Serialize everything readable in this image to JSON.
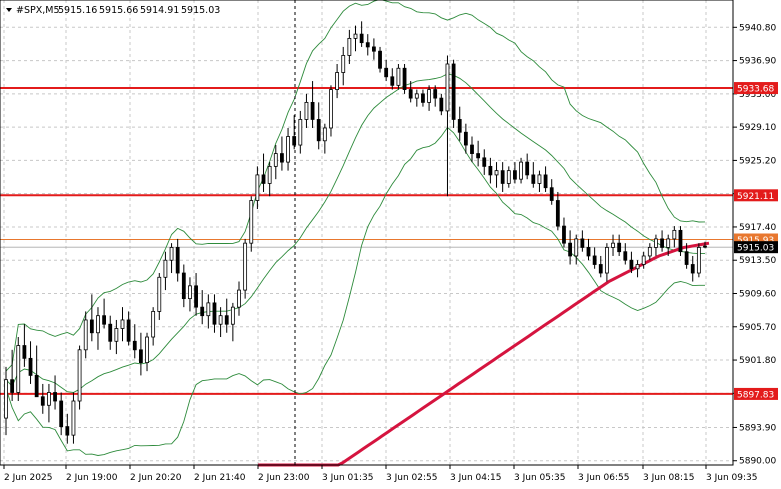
{
  "chart_data": {
    "type": "candlestick",
    "title": "#SPX,M5",
    "header": {
      "symbol": "#SPX,M5",
      "open": "5915.16",
      "high": "5915.66",
      "low": "5914.91",
      "close": "5915.03"
    },
    "ylim": [
      5889.5,
      5944.0
    ],
    "y_ticks": [
      "5940.80",
      "5936.90",
      "5933.00",
      "5929.10",
      "5925.20",
      "5921.30",
      "5917.40",
      "5913.50",
      "5909.60",
      "5905.70",
      "5901.80",
      "5897.90",
      "5893.90",
      "5890.00"
    ],
    "x_ticks": [
      "2 Jun 2025",
      "2 Jun 19:00",
      "2 Jun 20:20",
      "2 Jun 21:40",
      "2 Jun 23:00",
      "3 Jun 01:35",
      "3 Jun 02:55",
      "3 Jun 04:15",
      "3 Jun 05:35",
      "3 Jun 06:55",
      "3 Jun 08:15",
      "3 Jun 09:35"
    ],
    "horizontal_levels": [
      {
        "value": 5933.68,
        "label": "5933.68",
        "color": "#e31b1b"
      },
      {
        "value": 5921.11,
        "label": "5921.11",
        "color": "#e31b1b"
      },
      {
        "value": 5897.83,
        "label": "5897.83",
        "color": "#e31b1b"
      },
      {
        "value": 5915.93,
        "label": "5915.93",
        "color": "#e8772e"
      }
    ],
    "current_price": {
      "value": 5915.03,
      "label": "5915.03"
    },
    "candles": [
      [
        5895.0,
        5901.0,
        5893.0,
        5899.5
      ],
      [
        5899.5,
        5903.0,
        5897.0,
        5898.0
      ],
      [
        5898.0,
        5904.5,
        5897.0,
        5903.5
      ],
      [
        5903.5,
        5906.0,
        5901.0,
        5902.0
      ],
      [
        5902.0,
        5904.0,
        5899.0,
        5900.0
      ],
      [
        5900.0,
        5903.5,
        5898.0,
        5897.5
      ],
      [
        5897.5,
        5899.0,
        5895.5,
        5896.5
      ],
      [
        5896.5,
        5899.0,
        5894.5,
        5898.0
      ],
      [
        5898.0,
        5900.0,
        5896.0,
        5897.0
      ],
      [
        5897.0,
        5898.0,
        5893.0,
        5894.0
      ],
      [
        5894.0,
        5895.5,
        5892.0,
        5893.0
      ],
      [
        5893.0,
        5898.0,
        5892.0,
        5897.0
      ],
      [
        5897.0,
        5903.5,
        5896.0,
        5903.0
      ],
      [
        5903.0,
        5907.5,
        5902.0,
        5906.5
      ],
      [
        5906.5,
        5909.5,
        5904.0,
        5905.0
      ],
      [
        5905.0,
        5908.0,
        5903.0,
        5907.0
      ],
      [
        5907.0,
        5909.0,
        5905.5,
        5906.0
      ],
      [
        5906.0,
        5907.0,
        5903.0,
        5904.0
      ],
      [
        5904.0,
        5906.5,
        5902.5,
        5905.5
      ],
      [
        5905.5,
        5908.0,
        5904.0,
        5906.5
      ],
      [
        5906.5,
        5907.5,
        5903.5,
        5904.0
      ],
      [
        5904.0,
        5906.0,
        5902.0,
        5903.0
      ],
      [
        5903.0,
        5905.0,
        5900.0,
        5901.5
      ],
      [
        5901.5,
        5905.0,
        5900.5,
        5904.5
      ],
      [
        5904.5,
        5908.0,
        5903.5,
        5907.5
      ],
      [
        5907.5,
        5912.0,
        5906.5,
        5911.5
      ],
      [
        5911.5,
        5914.5,
        5910.0,
        5913.5
      ],
      [
        5913.5,
        5915.5,
        5912.0,
        5915.0
      ],
      [
        5915.0,
        5916.0,
        5911.0,
        5912.0
      ],
      [
        5912.0,
        5913.0,
        5908.0,
        5909.0
      ],
      [
        5909.0,
        5911.5,
        5907.5,
        5910.5
      ],
      [
        5910.5,
        5912.0,
        5907.0,
        5908.0
      ],
      [
        5908.0,
        5910.0,
        5906.0,
        5907.0
      ],
      [
        5907.0,
        5909.5,
        5905.5,
        5908.5
      ],
      [
        5908.5,
        5909.5,
        5905.0,
        5906.0
      ],
      [
        5906.0,
        5908.0,
        5904.5,
        5907.0
      ],
      [
        5907.0,
        5909.0,
        5905.0,
        5906.0
      ],
      [
        5906.0,
        5908.5,
        5904.0,
        5908.0
      ],
      [
        5908.0,
        5911.0,
        5907.0,
        5910.0
      ],
      [
        5910.0,
        5916.0,
        5909.0,
        5915.5
      ],
      [
        5915.5,
        5921.0,
        5914.5,
        5920.5
      ],
      [
        5920.5,
        5924.5,
        5919.5,
        5923.5
      ],
      [
        5923.5,
        5926.0,
        5921.5,
        5922.5
      ],
      [
        5922.5,
        5925.0,
        5921.0,
        5924.5
      ],
      [
        5924.5,
        5927.0,
        5923.0,
        5926.0
      ],
      [
        5926.0,
        5928.0,
        5924.0,
        5925.0
      ],
      [
        5925.0,
        5929.0,
        5924.0,
        5928.0
      ],
      [
        5928.0,
        5930.5,
        5926.5,
        5927.0
      ],
      [
        5927.0,
        5931.0,
        5926.0,
        5930.0
      ],
      [
        5930.0,
        5933.0,
        5929.0,
        5932.0
      ],
      [
        5932.0,
        5934.5,
        5929.0,
        5930.0
      ],
      [
        5930.0,
        5932.0,
        5926.5,
        5927.5
      ],
      [
        5927.5,
        5929.5,
        5926.0,
        5929.0
      ],
      [
        5929.0,
        5934.0,
        5928.0,
        5933.5
      ],
      [
        5933.5,
        5936.5,
        5932.5,
        5935.5
      ],
      [
        5935.5,
        5938.5,
        5934.0,
        5937.5
      ],
      [
        5937.5,
        5940.5,
        5936.5,
        5939.5
      ],
      [
        5939.5,
        5941.0,
        5938.0,
        5940.0
      ],
      [
        5940.0,
        5941.5,
        5938.5,
        5939.0
      ],
      [
        5939.0,
        5940.0,
        5937.5,
        5938.5
      ],
      [
        5938.5,
        5939.5,
        5937.0,
        5938.0
      ],
      [
        5938.0,
        5938.5,
        5935.5,
        5936.0
      ],
      [
        5936.0,
        5937.0,
        5934.5,
        5935.0
      ],
      [
        5935.0,
        5936.0,
        5933.5,
        5934.0
      ],
      [
        5934.0,
        5936.5,
        5933.5,
        5936.0
      ],
      [
        5936.0,
        5936.5,
        5933.0,
        5933.5
      ],
      [
        5933.5,
        5934.5,
        5932.0,
        5932.5
      ],
      [
        5932.5,
        5933.5,
        5931.5,
        5933.0
      ],
      [
        5933.0,
        5933.5,
        5931.5,
        5932.0
      ],
      [
        5932.0,
        5934.0,
        5931.0,
        5933.5
      ],
      [
        5933.5,
        5934.0,
        5931.5,
        5932.5
      ],
      [
        5932.5,
        5933.0,
        5930.5,
        5931.0
      ],
      [
        5931.0,
        5937.5,
        5921.0,
        5936.5
      ],
      [
        5936.5,
        5937.0,
        5929.0,
        5930.0
      ],
      [
        5930.0,
        5931.5,
        5927.5,
        5928.5
      ],
      [
        5928.5,
        5929.5,
        5926.0,
        5927.0
      ],
      [
        5927.0,
        5928.0,
        5925.0,
        5926.0
      ],
      [
        5926.0,
        5927.5,
        5924.5,
        5925.5
      ],
      [
        5925.5,
        5926.5,
        5923.5,
        5924.5
      ],
      [
        5924.5,
        5925.5,
        5922.5,
        5923.5
      ],
      [
        5923.5,
        5925.0,
        5922.0,
        5924.0
      ],
      [
        5924.0,
        5925.0,
        5921.5,
        5922.5
      ],
      [
        5922.5,
        5924.5,
        5922.0,
        5924.0
      ],
      [
        5924.0,
        5925.0,
        5922.5,
        5923.0
      ],
      [
        5923.0,
        5925.5,
        5922.5,
        5925.0
      ],
      [
        5925.0,
        5926.0,
        5923.0,
        5923.5
      ],
      [
        5923.5,
        5925.0,
        5922.0,
        5922.5
      ],
      [
        5922.5,
        5924.0,
        5921.5,
        5923.5
      ],
      [
        5923.5,
        5924.5,
        5921.5,
        5922.0
      ],
      [
        5922.0,
        5923.0,
        5920.0,
        5920.5
      ],
      [
        5920.5,
        5921.5,
        5917.0,
        5917.5
      ],
      [
        5917.5,
        5918.5,
        5915.0,
        5915.5
      ],
      [
        5915.5,
        5917.0,
        5913.0,
        5914.0
      ],
      [
        5914.0,
        5916.5,
        5913.0,
        5916.0
      ],
      [
        5916.0,
        5917.0,
        5914.5,
        5915.0
      ],
      [
        5915.0,
        5916.0,
        5913.5,
        5914.0
      ],
      [
        5914.0,
        5915.0,
        5912.5,
        5913.0
      ],
      [
        5913.0,
        5914.0,
        5911.5,
        5912.0
      ],
      [
        5912.0,
        5915.5,
        5911.0,
        5915.0
      ],
      [
        5915.0,
        5916.5,
        5914.0,
        5915.5
      ],
      [
        5915.5,
        5916.5,
        5914.0,
        5914.5
      ],
      [
        5914.5,
        5915.5,
        5913.0,
        5913.5
      ],
      [
        5913.5,
        5914.5,
        5912.0,
        5912.5
      ],
      [
        5912.5,
        5913.5,
        5911.5,
        5913.0
      ],
      [
        5913.0,
        5914.5,
        5912.5,
        5914.0
      ],
      [
        5914.0,
        5915.5,
        5913.5,
        5915.0
      ],
      [
        5915.0,
        5916.5,
        5914.0,
        5916.0
      ],
      [
        5916.0,
        5917.0,
        5914.5,
        5915.0
      ],
      [
        5915.0,
        5916.5,
        5914.0,
        5916.0
      ],
      [
        5916.0,
        5917.5,
        5915.0,
        5917.0
      ],
      [
        5917.0,
        5917.5,
        5914.0,
        5914.5
      ],
      [
        5914.5,
        5915.5,
        5912.5,
        5913.0
      ],
      [
        5913.0,
        5914.0,
        5911.0,
        5912.0
      ],
      [
        5912.0,
        5915.5,
        5911.5,
        5915.0
      ],
      [
        5915.16,
        5915.66,
        5914.91,
        5915.03
      ]
    ],
    "ma_slow": [
      5883.0,
      5883.4,
      5883.8,
      5884.2,
      5884.6,
      5885.0,
      5885.4,
      5885.8,
      5886.2,
      5886.6,
      5887.0,
      5887.4,
      5887.8,
      5888.2,
      5888.6,
      5889.0,
      5889.4,
      5889.8,
      5890.2,
      5890.6,
      5891.0,
      5891.4,
      5891.8,
      5892.2,
      5892.6,
      5893.0,
      5893.4,
      5893.8,
      5894.2,
      5894.6,
      5895.0,
      5895.4,
      5895.8,
      5896.2,
      5896.6,
      5897.0,
      5897.4,
      5897.8,
      5898.2,
      5898.6,
      5899.0,
      5899.4,
      5899.8,
      5900.2,
      5900.6,
      5901.0,
      5901.4,
      5901.8,
      5902.2,
      5902.6,
      5903.0,
      5903.4,
      5903.8,
      5904.2,
      5904.6,
      5905.0,
      5905.4,
      5905.8,
      5906.2,
      5906.6,
      5907.0,
      5907.4,
      5907.8,
      5908.2,
      5908.6,
      5909.0,
      5909.4,
      5909.8,
      5910.2,
      5910.6,
      5911.0,
      5911.3,
      5911.6,
      5911.9,
      5912.2,
      5912.5,
      5912.8,
      5913.1,
      5913.4,
      5913.7,
      5914.0,
      5914.2,
      5914.4,
      5914.6,
      5914.8,
      5915.0,
      5915.1,
      5915.2,
      5915.3,
      5915.4,
      5915.5
    ],
    "bands": [],
    "grid": true
  }
}
